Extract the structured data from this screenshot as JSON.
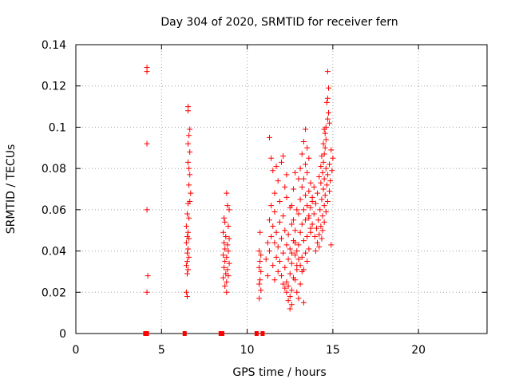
{
  "chart_data": {
    "type": "scatter",
    "title": "Day 304 of 2020, SRMTID for receiver fern",
    "xlabel": "GPS time / hours",
    "ylabel": "SRMTID / TECUs",
    "xlim": [
      0,
      24
    ],
    "ylim": [
      0,
      0.14
    ],
    "x_ticks": [
      0,
      5,
      10,
      15,
      20
    ],
    "x_tick_labels": [
      "0",
      "5",
      "10",
      "15",
      "20"
    ],
    "y_ticks": [
      0,
      0.02,
      0.04,
      0.06,
      0.08,
      0.1,
      0.12,
      0.14
    ],
    "y_tick_labels": [
      "0",
      "0.02",
      "0.04",
      "0.06",
      "0.08",
      "0.1",
      "0.12",
      "0.14"
    ],
    "grid": true,
    "marker": "plus",
    "color": "#ff0000",
    "zero_points_x": [
      4.05,
      4.15,
      6.35,
      8.45,
      8.55,
      10.55,
      10.9
    ],
    "series": [
      {
        "name": "SRMTID",
        "points": [
          [
            4.15,
            0.129
          ],
          [
            4.15,
            0.127
          ],
          [
            4.15,
            0.092
          ],
          [
            4.15,
            0.06
          ],
          [
            4.2,
            0.028
          ],
          [
            4.15,
            0.02
          ],
          [
            6.55,
            0.11
          ],
          [
            6.55,
            0.108
          ],
          [
            6.65,
            0.099
          ],
          [
            6.6,
            0.096
          ],
          [
            6.55,
            0.092
          ],
          [
            6.65,
            0.088
          ],
          [
            6.55,
            0.083
          ],
          [
            6.6,
            0.08
          ],
          [
            6.65,
            0.077
          ],
          [
            6.6,
            0.072
          ],
          [
            6.7,
            0.068
          ],
          [
            6.65,
            0.064
          ],
          [
            6.55,
            0.063
          ],
          [
            6.5,
            0.058
          ],
          [
            6.6,
            0.056
          ],
          [
            6.45,
            0.052
          ],
          [
            6.55,
            0.049
          ],
          [
            6.5,
            0.047
          ],
          [
            6.6,
            0.046
          ],
          [
            6.45,
            0.044
          ],
          [
            6.55,
            0.041
          ],
          [
            6.5,
            0.039
          ],
          [
            6.6,
            0.037
          ],
          [
            6.5,
            0.035
          ],
          [
            6.45,
            0.033
          ],
          [
            6.55,
            0.031
          ],
          [
            6.5,
            0.029
          ],
          [
            6.45,
            0.02
          ],
          [
            6.5,
            0.018
          ],
          [
            8.8,
            0.068
          ],
          [
            8.85,
            0.062
          ],
          [
            8.95,
            0.06
          ],
          [
            8.65,
            0.056
          ],
          [
            8.7,
            0.054
          ],
          [
            8.9,
            0.052
          ],
          [
            8.6,
            0.049
          ],
          [
            8.75,
            0.047
          ],
          [
            8.95,
            0.046
          ],
          [
            8.65,
            0.044
          ],
          [
            8.85,
            0.043
          ],
          [
            8.7,
            0.041
          ],
          [
            8.9,
            0.04
          ],
          [
            8.6,
            0.038
          ],
          [
            8.8,
            0.037
          ],
          [
            8.7,
            0.035
          ],
          [
            8.95,
            0.034
          ],
          [
            8.65,
            0.032
          ],
          [
            8.85,
            0.031
          ],
          [
            8.75,
            0.029
          ],
          [
            8.9,
            0.028
          ],
          [
            8.6,
            0.027
          ],
          [
            8.8,
            0.025
          ],
          [
            8.7,
            0.023
          ],
          [
            8.8,
            0.02
          ],
          [
            11.3,
            0.095
          ],
          [
            11.4,
            0.085
          ],
          [
            12.1,
            0.086
          ],
          [
            12.0,
            0.083
          ],
          [
            11.7,
            0.081
          ],
          [
            11.5,
            0.079
          ],
          [
            12.3,
            0.077
          ],
          [
            11.8,
            0.074
          ],
          [
            12.2,
            0.071
          ],
          [
            11.6,
            0.068
          ],
          [
            12.3,
            0.066
          ],
          [
            11.9,
            0.064
          ],
          [
            11.4,
            0.062
          ],
          [
            12.5,
            0.061
          ],
          [
            11.6,
            0.059
          ],
          [
            12.1,
            0.057
          ],
          [
            11.3,
            0.055
          ],
          [
            11.9,
            0.054
          ],
          [
            12.6,
            0.053
          ],
          [
            11.5,
            0.052
          ],
          [
            12.2,
            0.05
          ],
          [
            11.7,
            0.049
          ],
          [
            12.4,
            0.048
          ],
          [
            11.4,
            0.047
          ],
          [
            12.0,
            0.046
          ],
          [
            12.7,
            0.045
          ],
          [
            11.6,
            0.044
          ],
          [
            12.3,
            0.043
          ],
          [
            11.8,
            0.042
          ],
          [
            12.5,
            0.041
          ],
          [
            11.3,
            0.04
          ],
          [
            12.1,
            0.039
          ],
          [
            12.8,
            0.038
          ],
          [
            11.7,
            0.037
          ],
          [
            12.4,
            0.036
          ],
          [
            11.9,
            0.035
          ],
          [
            12.6,
            0.034
          ],
          [
            11.5,
            0.033
          ],
          [
            12.2,
            0.032
          ],
          [
            12.9,
            0.031
          ],
          [
            11.8,
            0.03
          ],
          [
            12.5,
            0.029
          ],
          [
            12.0,
            0.028
          ],
          [
            12.7,
            0.027
          ],
          [
            11.6,
            0.026
          ],
          [
            12.3,
            0.025
          ],
          [
            12.1,
            0.024
          ],
          [
            12.4,
            0.023
          ],
          [
            12.2,
            0.022
          ],
          [
            12.6,
            0.021
          ],
          [
            12.3,
            0.02
          ],
          [
            12.5,
            0.018
          ],
          [
            12.4,
            0.016
          ],
          [
            12.6,
            0.014
          ],
          [
            12.5,
            0.012
          ],
          [
            13.0,
            0.017
          ],
          [
            13.3,
            0.015
          ],
          [
            12.9,
            0.02
          ],
          [
            13.1,
            0.024
          ],
          [
            12.8,
            0.026
          ],
          [
            13.2,
            0.03
          ],
          [
            12.9,
            0.033
          ],
          [
            13.0,
            0.036
          ],
          [
            10.7,
            0.04
          ],
          [
            10.8,
            0.038
          ],
          [
            10.75,
            0.035
          ],
          [
            10.7,
            0.032
          ],
          [
            10.8,
            0.03
          ],
          [
            10.75,
            0.026
          ],
          [
            10.7,
            0.024
          ],
          [
            10.8,
            0.021
          ],
          [
            10.7,
            0.017
          ],
          [
            10.75,
            0.049
          ],
          [
            11.2,
            0.044
          ],
          [
            11.1,
            0.036
          ],
          [
            11.2,
            0.028
          ],
          [
            14.7,
            0.127
          ],
          [
            14.75,
            0.119
          ],
          [
            14.7,
            0.114
          ],
          [
            14.65,
            0.112
          ],
          [
            14.75,
            0.107
          ],
          [
            14.7,
            0.104
          ],
          [
            14.8,
            0.102
          ],
          [
            14.6,
            0.1
          ],
          [
            14.5,
            0.099
          ],
          [
            14.55,
            0.097
          ],
          [
            14.6,
            0.094
          ],
          [
            14.45,
            0.092
          ],
          [
            14.55,
            0.09
          ],
          [
            14.9,
            0.089
          ],
          [
            14.5,
            0.087
          ],
          [
            14.35,
            0.086
          ],
          [
            15.0,
            0.085
          ],
          [
            14.45,
            0.083
          ],
          [
            14.8,
            0.082
          ],
          [
            14.3,
            0.081
          ],
          [
            14.6,
            0.08
          ],
          [
            14.95,
            0.079
          ],
          [
            14.4,
            0.078
          ],
          [
            14.7,
            0.077
          ],
          [
            14.2,
            0.076
          ],
          [
            14.5,
            0.075
          ],
          [
            14.85,
            0.074
          ],
          [
            14.3,
            0.073
          ],
          [
            14.65,
            0.072
          ],
          [
            13.9,
            0.071
          ],
          [
            14.45,
            0.07
          ],
          [
            14.8,
            0.069
          ],
          [
            14.1,
            0.068
          ],
          [
            14.55,
            0.067
          ],
          [
            13.8,
            0.066
          ],
          [
            14.35,
            0.065
          ],
          [
            14.7,
            0.064
          ],
          [
            14.0,
            0.063
          ],
          [
            14.5,
            0.062
          ],
          [
            13.7,
            0.061
          ],
          [
            14.25,
            0.06
          ],
          [
            14.6,
            0.059
          ],
          [
            13.9,
            0.058
          ],
          [
            14.4,
            0.057
          ],
          [
            13.6,
            0.056
          ],
          [
            14.15,
            0.055
          ],
          [
            14.5,
            0.054
          ],
          [
            13.8,
            0.053
          ],
          [
            14.3,
            0.052
          ],
          [
            14.05,
            0.051
          ],
          [
            14.4,
            0.05
          ],
          [
            13.7,
            0.049
          ],
          [
            14.2,
            0.048
          ],
          [
            13.95,
            0.047
          ],
          [
            14.35,
            0.046
          ],
          [
            14.1,
            0.044
          ],
          [
            14.2,
            0.042
          ],
          [
            14.9,
            0.043
          ],
          [
            14.0,
            0.04
          ],
          [
            13.4,
            0.099
          ],
          [
            13.3,
            0.093
          ],
          [
            13.5,
            0.09
          ],
          [
            13.2,
            0.087
          ],
          [
            13.6,
            0.085
          ],
          [
            13.4,
            0.082
          ],
          [
            13.1,
            0.08
          ],
          [
            13.5,
            0.078
          ],
          [
            13.3,
            0.075
          ],
          [
            13.7,
            0.073
          ],
          [
            13.2,
            0.071
          ],
          [
            13.6,
            0.069
          ],
          [
            13.4,
            0.067
          ],
          [
            13.1,
            0.065
          ],
          [
            13.8,
            0.064
          ],
          [
            13.5,
            0.062
          ],
          [
            13.3,
            0.06
          ],
          [
            13.0,
            0.058
          ],
          [
            13.6,
            0.057
          ],
          [
            13.4,
            0.055
          ],
          [
            13.2,
            0.053
          ],
          [
            13.7,
            0.051
          ],
          [
            13.1,
            0.049
          ],
          [
            13.5,
            0.047
          ],
          [
            13.3,
            0.045
          ],
          [
            13.0,
            0.043
          ],
          [
            13.6,
            0.041
          ],
          [
            13.4,
            0.039
          ],
          [
            13.2,
            0.037
          ],
          [
            13.5,
            0.035
          ],
          [
            13.1,
            0.033
          ],
          [
            13.3,
            0.031
          ],
          [
            12.9,
            0.04
          ],
          [
            12.8,
            0.05
          ],
          [
            12.9,
            0.06
          ],
          [
            12.7,
            0.07
          ],
          [
            13.0,
            0.075
          ],
          [
            12.8,
            0.078
          ],
          [
            12.6,
            0.062
          ],
          [
            12.7,
            0.055
          ],
          [
            12.8,
            0.044
          ],
          [
            12.6,
            0.039
          ]
        ]
      }
    ]
  }
}
